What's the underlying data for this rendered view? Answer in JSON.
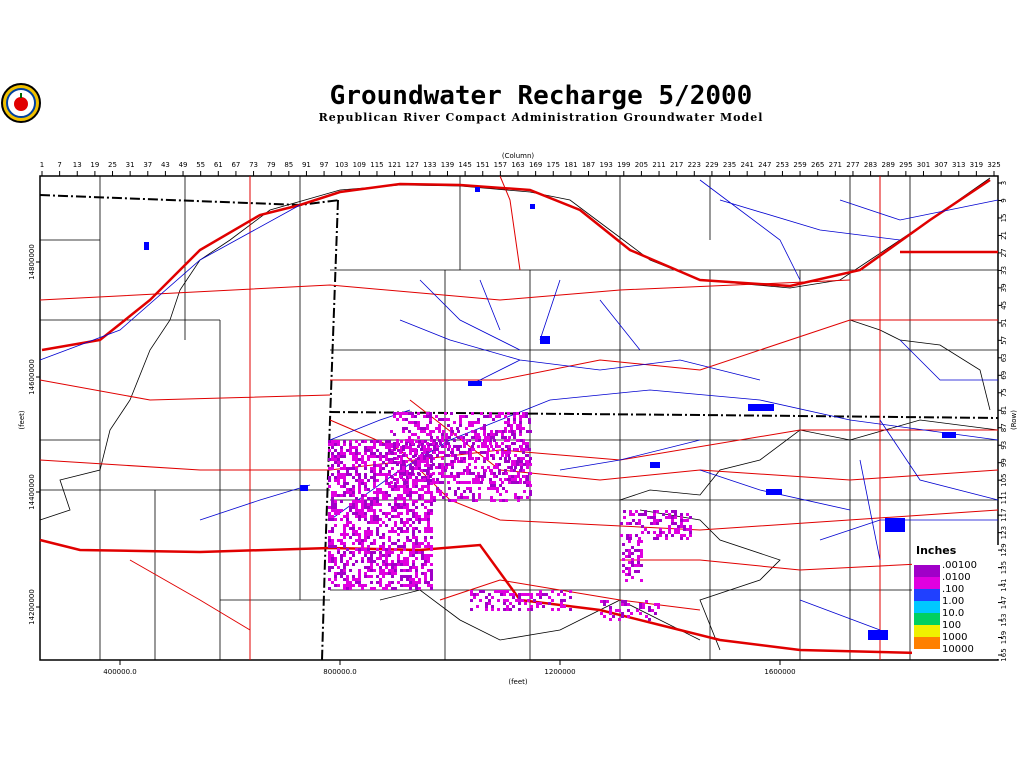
{
  "header": {
    "title": "Groundwater Recharge 5/2000",
    "subtitle": "Republican River Compact Administration Groundwater Model"
  },
  "map": {
    "column_label": "(Column)",
    "row_label": "(Row)",
    "x_label": "(feet)",
    "y_label": "(feet)",
    "column_ticks": [
      1,
      7,
      13,
      19,
      25,
      31,
      37,
      43,
      49,
      55,
      61,
      67,
      73,
      79,
      85,
      91,
      97,
      103,
      109,
      115,
      121,
      127,
      133,
      139,
      145,
      151,
      157,
      163,
      169,
      175,
      181,
      187,
      193,
      199,
      205,
      211,
      217,
      223,
      229,
      235,
      241,
      247,
      253,
      259,
      265,
      271,
      277,
      283,
      289,
      295,
      301,
      307,
      313,
      319,
      325
    ],
    "row_ticks": [
      3,
      9,
      15,
      21,
      27,
      33,
      39,
      45,
      51,
      57,
      63,
      69,
      75,
      81,
      87,
      93,
      99,
      105,
      111,
      117,
      123,
      129,
      135,
      141,
      147,
      153,
      159,
      165
    ],
    "x_ticks": [
      {
        "value": 400000,
        "label": "400000.0"
      },
      {
        "value": 800000,
        "label": "800000.0"
      },
      1200000,
      1600000
    ],
    "y_ticks": [
      14800000,
      14600000,
      14400000,
      14200000
    ],
    "legend": {
      "title": "Inches",
      "entries": [
        {
          "label": ".00100",
          "color": "#a000c8"
        },
        {
          "label": ".0100",
          "color": "#e000e0"
        },
        {
          "label": ".100",
          "color": "#2040ff"
        },
        {
          "label": "1.00",
          "color": "#00c8ff"
        },
        {
          "label": "10.0",
          "color": "#00d060"
        },
        {
          "label": "100",
          "color": "#f0f000"
        },
        {
          "label": "1000",
          "color": "#ff8000"
        },
        {
          "label": "10000",
          "color": "#ff8000"
        }
      ]
    }
  }
}
